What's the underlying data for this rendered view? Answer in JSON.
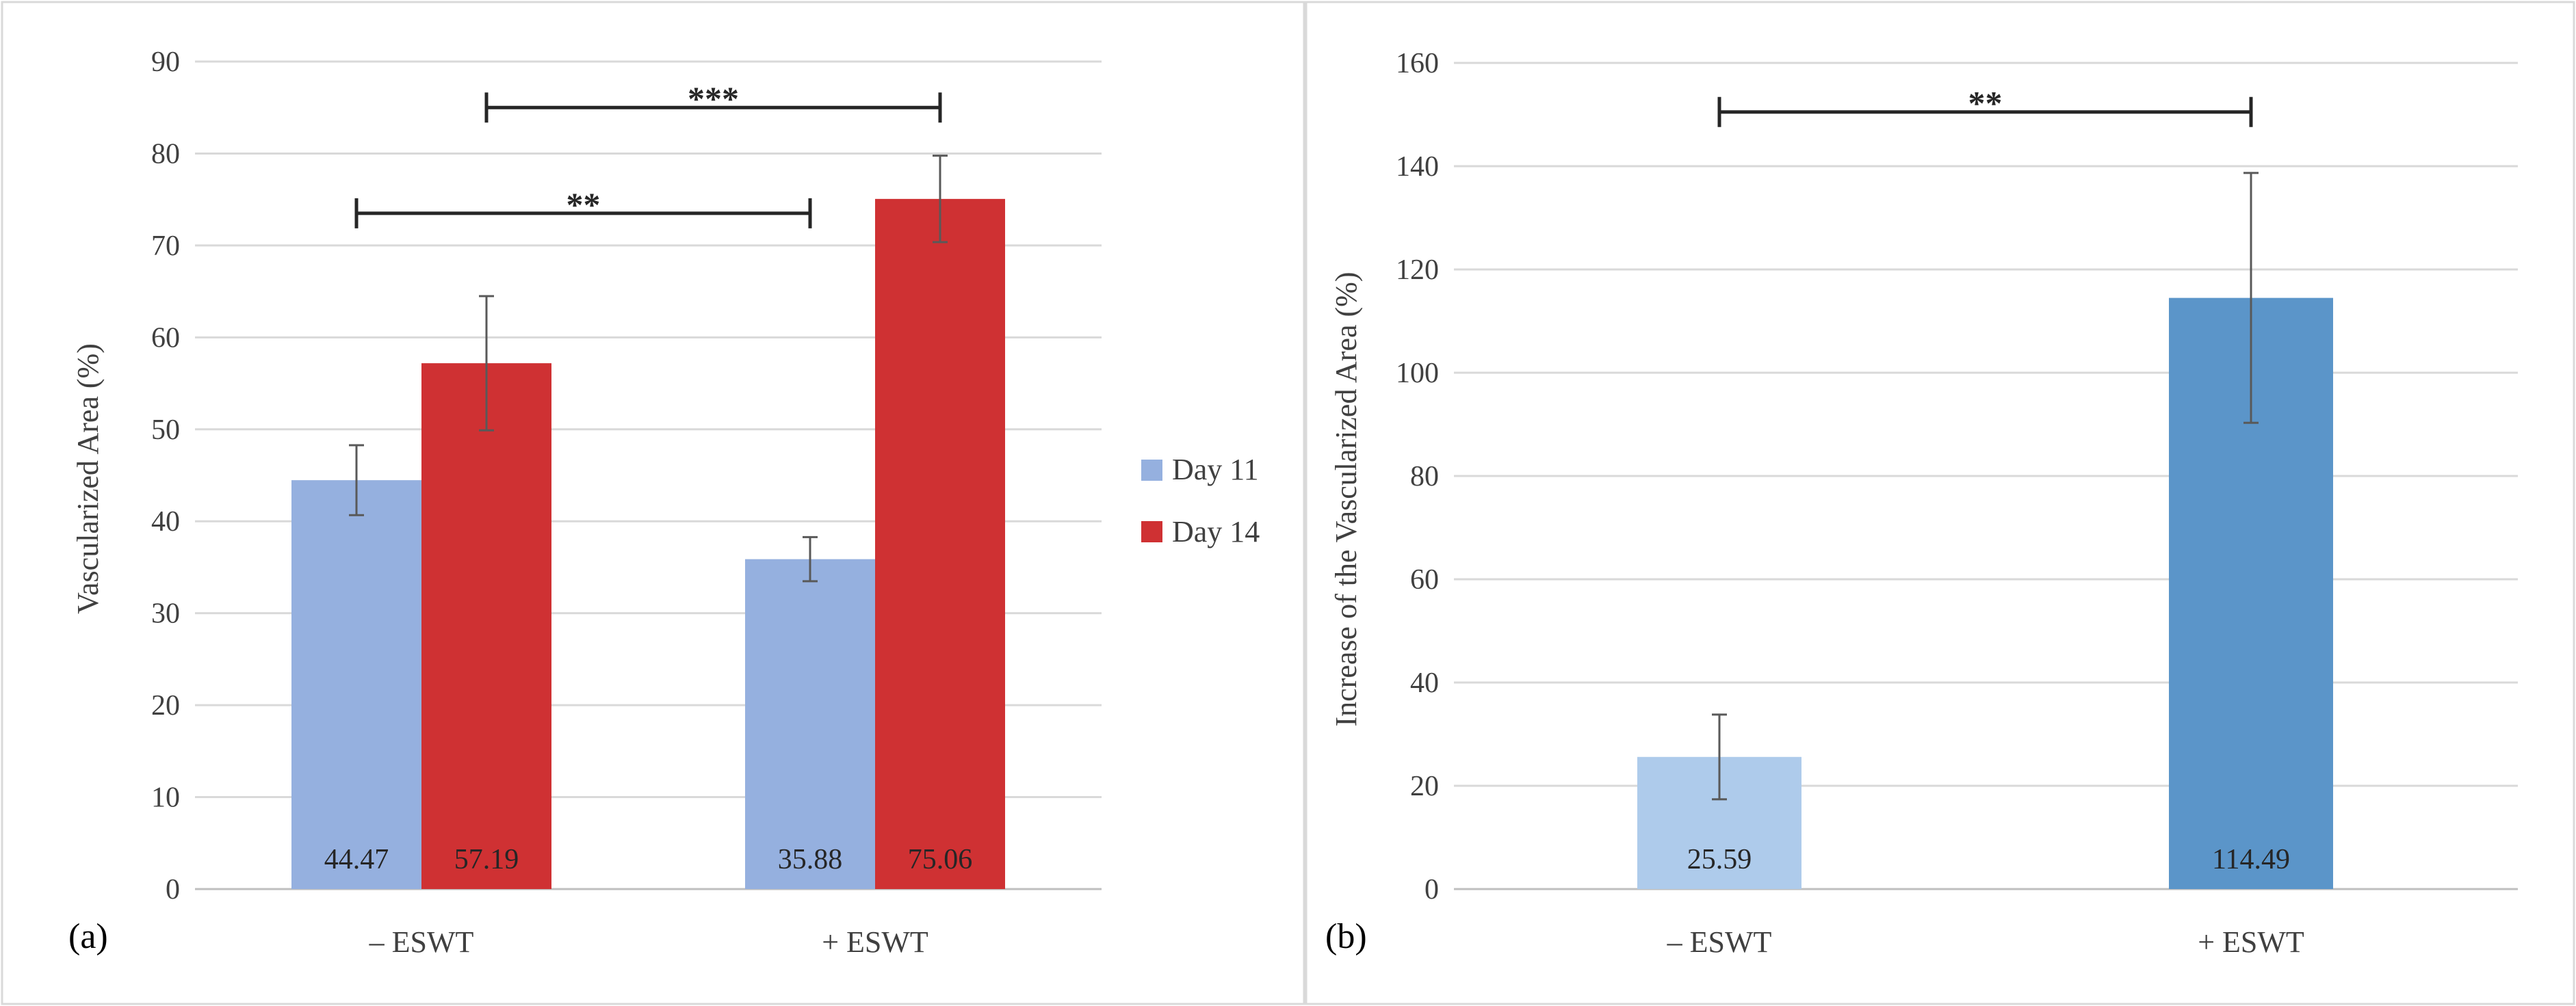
{
  "chart_data": [
    {
      "type": "bar",
      "panel_label": "(a)",
      "ylabel": "Vascularized Area (%)",
      "ylim": [
        0,
        90
      ],
      "yticks": [
        0,
        10,
        20,
        30,
        40,
        50,
        60,
        70,
        80,
        90
      ],
      "grid": true,
      "categories": [
        "– ESWT",
        "+ ESWT"
      ],
      "legend_position": "right",
      "series": [
        {
          "name": "Day 11",
          "color": "#95b0df",
          "values": [
            44.47,
            35.88
          ],
          "errors": [
            3.8,
            2.4
          ],
          "value_labels": [
            "44.47",
            "35.88"
          ]
        },
        {
          "name": "Day 14",
          "color": "#cf3133",
          "values": [
            57.19,
            75.06
          ],
          "errors": [
            7.3,
            4.7
          ],
          "value_labels": [
            "57.19",
            "75.06"
          ]
        }
      ],
      "significance": [
        {
          "label": "***",
          "from": "– ESWT / Day 14",
          "to": "+ ESWT / Day 14",
          "y": 85
        },
        {
          "label": "**",
          "from": "– ESWT / Day 11",
          "to": "+ ESWT / Day 11",
          "y": 73.5
        }
      ]
    },
    {
      "type": "bar",
      "panel_label": "(b)",
      "ylabel": "Increase of the Vascularized Area (%)",
      "ylim": [
        0,
        160
      ],
      "yticks": [
        0,
        20,
        40,
        60,
        80,
        100,
        120,
        140,
        160
      ],
      "grid": true,
      "categories": [
        "– ESWT",
        "+ ESWT"
      ],
      "values": [
        25.59,
        114.49
      ],
      "errors": [
        8.2,
        24.2
      ],
      "value_labels": [
        "25.59",
        "114.49"
      ],
      "colors": [
        "#aecbeb",
        "#5b95c9"
      ],
      "significance": [
        {
          "label": "**",
          "from": "– ESWT",
          "to": "+ ESWT",
          "y": 150.5
        }
      ]
    }
  ]
}
